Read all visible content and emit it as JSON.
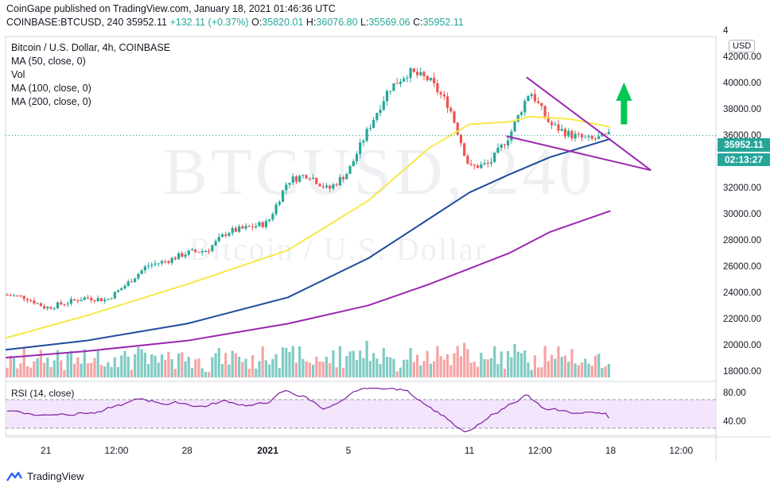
{
  "header": {
    "line1": "CoinGape published on TradingView.com, January 18, 2021 01:46:36 UTC",
    "symbol": "COINBASE:BTCUSD, 240",
    "last": "35952.11",
    "change": "+132.11 (+0.37%)",
    "open_label": "O:",
    "open": "35820.01",
    "high_label": "H:",
    "high": "36076.80",
    "low_label": "L:",
    "low": "35569.06",
    "close_label": "C:",
    "close": "35952.11"
  },
  "legend": {
    "title": "Bitcoin / U.S. Dollar, 4h, COINBASE",
    "ma50": "MA (50, close, 0)",
    "vol": "Vol",
    "ma100": "MA (100, close, 0)",
    "ma200": "MA (200, close, 0)",
    "rsi": "RSI (14, close)"
  },
  "watermark": {
    "big": "BTCUSD, 240",
    "small": "Bitcoin / U.S. Dollar"
  },
  "axis": {
    "currency": "USD",
    "price_ticks": [
      "42000.00",
      "40000.00",
      "38000.00",
      "36000.00",
      "34000.00",
      "32000.00",
      "30000.00",
      "28000.00",
      "26000.00",
      "24000.00",
      "22000.00",
      "20000.00",
      "18000.00"
    ],
    "top_tick_partial": "4",
    "rsi_ticks": [
      "80.00",
      "40.00"
    ],
    "time_ticks": [
      "21",
      "12:00",
      "28",
      "2021",
      "5",
      "11",
      "12:00",
      "18",
      "12:00"
    ],
    "current_price": "35952.11",
    "countdown": "02:13:27"
  },
  "colors": {
    "up": "#26a69a",
    "down": "#ef5350",
    "vol_up": "#80cbc4",
    "vol_down": "#f6a4a4",
    "ma50": "#f5e94a",
    "ma100": "#1e4d9a",
    "ma200": "#9c27b0",
    "trendline": "#9c27b0",
    "arrow": "#00c853",
    "rsi_line": "#7b1fa2",
    "rsi_band": "#f3e5fb"
  },
  "footer": {
    "brand": "TradingView"
  },
  "chart_data": {
    "type": "candlestick",
    "symbol": "BTCUSD",
    "interval": "4h",
    "y_range": [
      17500,
      43500
    ],
    "price_ticks": [
      18000,
      20000,
      22000,
      24000,
      26000,
      28000,
      30000,
      32000,
      34000,
      36000,
      38000,
      40000,
      42000
    ],
    "close_path": [
      {
        "t": "Dec 19",
        "close": 23800
      },
      {
        "t": "Dec 20",
        "close": 23600
      },
      {
        "t": "Dec 21",
        "close": 22800
      },
      {
        "t": "Dec 22",
        "close": 23200
      },
      {
        "t": "Dec 23",
        "close": 23600
      },
      {
        "t": "Dec 24",
        "close": 23400
      },
      {
        "t": "Dec 25",
        "close": 24600
      },
      {
        "t": "Dec 26",
        "close": 26000
      },
      {
        "t": "Dec 27",
        "close": 26400
      },
      {
        "t": "Dec 28",
        "close": 27000
      },
      {
        "t": "Dec 29",
        "close": 27200
      },
      {
        "t": "Dec 30",
        "close": 28600
      },
      {
        "t": "Dec 31",
        "close": 28900
      },
      {
        "t": "Jan 1",
        "close": 29300
      },
      {
        "t": "Jan 2",
        "close": 32500
      },
      {
        "t": "Jan 3",
        "close": 33000
      },
      {
        "t": "Jan 4",
        "close": 31800
      },
      {
        "t": "Jan 5",
        "close": 33200
      },
      {
        "t": "Jan 6",
        "close": 36500
      },
      {
        "t": "Jan 7",
        "close": 39500
      },
      {
        "t": "Jan 8",
        "close": 40800
      },
      {
        "t": "Jan 9",
        "close": 40200
      },
      {
        "t": "Jan 10",
        "close": 38200
      },
      {
        "t": "Jan 11",
        "close": 33500
      },
      {
        "t": "Jan 12",
        "close": 33800
      },
      {
        "t": "Jan 13",
        "close": 36000
      },
      {
        "t": "Jan 14",
        "close": 39400
      },
      {
        "t": "Jan 15",
        "close": 36800
      },
      {
        "t": "Jan 16",
        "close": 36000
      },
      {
        "t": "Jan 17",
        "close": 35600
      },
      {
        "t": "Jan 18",
        "close": 35952
      }
    ],
    "moving_averages": [
      {
        "name": "MA (50, close, 0)",
        "color": "#f5e94a",
        "points": [
          {
            "t": "Dec 19",
            "v": 20500
          },
          {
            "t": "Dec 23",
            "v": 22200
          },
          {
            "t": "Dec 28",
            "v": 24600
          },
          {
            "t": "Jan 2",
            "v": 27200
          },
          {
            "t": "Jan 6",
            "v": 31000
          },
          {
            "t": "Jan 9",
            "v": 35000
          },
          {
            "t": "Jan 11",
            "v": 36800
          },
          {
            "t": "Jan 13",
            "v": 37000
          },
          {
            "t": "Jan 14",
            "v": 37400
          },
          {
            "t": "Jan 16",
            "v": 37200
          },
          {
            "t": "Jan 18",
            "v": 36600
          }
        ]
      },
      {
        "name": "MA (100, close, 0)",
        "color": "#1e4d9a",
        "points": [
          {
            "t": "Dec 19",
            "v": 19600
          },
          {
            "t": "Dec 23",
            "v": 20300
          },
          {
            "t": "Dec 28",
            "v": 21600
          },
          {
            "t": "Jan 2",
            "v": 23600
          },
          {
            "t": "Jan 6",
            "v": 26600
          },
          {
            "t": "Jan 9",
            "v": 29600
          },
          {
            "t": "Jan 11",
            "v": 31600
          },
          {
            "t": "Jan 13",
            "v": 33000
          },
          {
            "t": "Jan 15",
            "v": 34300
          },
          {
            "t": "Jan 18",
            "v": 35700
          }
        ]
      },
      {
        "name": "MA (200, close, 0)",
        "color": "#9c27b0",
        "points": [
          {
            "t": "Dec 19",
            "v": 19000
          },
          {
            "t": "Dec 23",
            "v": 19500
          },
          {
            "t": "Dec 28",
            "v": 20300
          },
          {
            "t": "Jan 2",
            "v": 21600
          },
          {
            "t": "Jan 6",
            "v": 23000
          },
          {
            "t": "Jan 9",
            "v": 24600
          },
          {
            "t": "Jan 11",
            "v": 25800
          },
          {
            "t": "Jan 13",
            "v": 27000
          },
          {
            "t": "Jan 15",
            "v": 28600
          },
          {
            "t": "Jan 18",
            "v": 30200
          }
        ]
      }
    ],
    "trendlines": [
      {
        "from": {
          "t": "Jan 13 20:00",
          "v": 40400
        },
        "to": {
          "t": "Jan 20",
          "v": 33300
        }
      },
      {
        "from": {
          "t": "Jan 12 20:00",
          "v": 35900
        },
        "to": {
          "t": "Jan 20",
          "v": 33300
        }
      }
    ],
    "rsi": {
      "range": [
        20,
        90
      ],
      "band": [
        30,
        70
      ],
      "ticks": [
        80,
        40
      ],
      "last": 44
    }
  }
}
